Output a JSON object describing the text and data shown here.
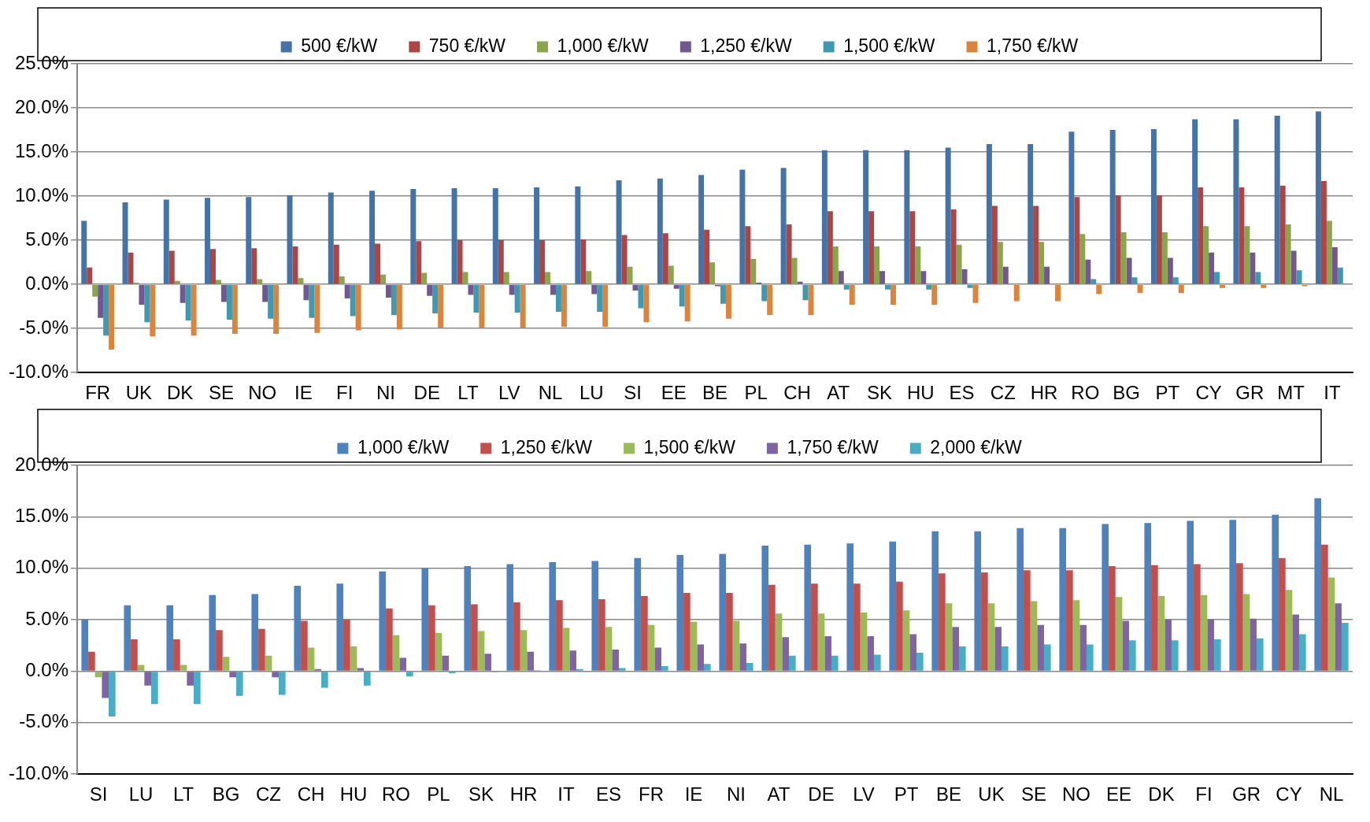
{
  "chart_data": [
    {
      "type": "bar",
      "categories": [
        "FR",
        "UK",
        "DK",
        "SE",
        "NO",
        "IE",
        "FI",
        "NI",
        "DE",
        "LT",
        "LV",
        "NL",
        "LU",
        "SI",
        "EE",
        "BE",
        "PL",
        "CH",
        "AT",
        "SK",
        "HU",
        "ES",
        "CZ",
        "HR",
        "RO",
        "BG",
        "PT",
        "CY",
        "GR",
        "MT",
        "IT"
      ],
      "series": [
        {
          "name": "500 €/kW",
          "color": "#4572a7",
          "values": [
            7.2,
            9.3,
            9.6,
            9.8,
            9.9,
            10.1,
            10.4,
            10.6,
            10.8,
            10.9,
            10.9,
            11.0,
            11.1,
            11.8,
            12.0,
            12.4,
            13.0,
            13.2,
            15.2,
            15.2,
            15.2,
            15.5,
            15.9,
            15.9,
            17.3,
            17.5,
            17.6,
            18.7,
            18.7,
            19.1,
            19.6
          ]
        },
        {
          "name": "750 €/kW",
          "color": "#aa4643",
          "values": [
            1.9,
            3.6,
            3.8,
            4.0,
            4.1,
            4.3,
            4.5,
            4.6,
            4.9,
            5.0,
            5.0,
            5.0,
            5.1,
            5.6,
            5.8,
            6.2,
            6.6,
            6.8,
            8.3,
            8.3,
            8.3,
            8.5,
            8.9,
            8.9,
            9.9,
            10.1,
            10.1,
            11.0,
            11.0,
            11.2,
            11.7
          ]
        },
        {
          "name": "1,000 €/kW",
          "color": "#89a54e",
          "values": [
            -1.4,
            0.2,
            0.4,
            0.5,
            0.6,
            0.7,
            0.9,
            1.1,
            1.3,
            1.4,
            1.4,
            1.4,
            1.5,
            2.0,
            2.1,
            2.5,
            2.9,
            3.0,
            4.3,
            4.3,
            4.3,
            4.5,
            4.8,
            4.8,
            5.7,
            5.9,
            5.9,
            6.6,
            6.6,
            6.8,
            7.2
          ]
        },
        {
          "name": "1,250 €/kW",
          "color": "#71588f",
          "values": [
            -3.8,
            -2.3,
            -2.1,
            -2.0,
            -2.0,
            -1.8,
            -1.6,
            -1.5,
            -1.3,
            -1.2,
            -1.2,
            -1.2,
            -1.1,
            -0.7,
            -0.5,
            -0.2,
            0.2,
            0.3,
            1.5,
            1.5,
            1.5,
            1.7,
            2.0,
            2.0,
            2.8,
            3.0,
            3.0,
            3.6,
            3.6,
            3.8,
            4.2
          ]
        },
        {
          "name": "1,500 €/kW",
          "color": "#4198af",
          "values": [
            -5.8,
            -4.3,
            -4.1,
            -4.0,
            -3.9,
            -3.8,
            -3.6,
            -3.5,
            -3.3,
            -3.2,
            -3.2,
            -3.1,
            -3.1,
            -2.7,
            -2.5,
            -2.2,
            -1.9,
            -1.8,
            -0.6,
            -0.6,
            -0.6,
            -0.4,
            null,
            null,
            0.6,
            0.8,
            0.8,
            1.4,
            1.4,
            1.6,
            1.9
          ]
        },
        {
          "name": "1,750 €/kW",
          "color": "#db843d",
          "values": [
            -7.4,
            -5.9,
            -5.8,
            -5.6,
            -5.6,
            -5.5,
            -5.2,
            -5.1,
            -4.9,
            -4.9,
            -4.9,
            -4.8,
            -4.8,
            -4.3,
            -4.2,
            -3.9,
            -3.5,
            -3.5,
            -2.3,
            -2.3,
            -2.3,
            -2.1,
            -1.9,
            -1.9,
            -1.1,
            -1.0,
            -1.0,
            -0.4,
            -0.4,
            -0.2,
            null
          ]
        }
      ],
      "ylim": [
        -10,
        25
      ],
      "yticks": [
        {
          "value": -10,
          "label": "-10.0%"
        },
        {
          "value": -5,
          "label": "-5.0%"
        },
        {
          "value": 0,
          "label": "0.0%"
        },
        {
          "value": 5,
          "label": "5.0%"
        },
        {
          "value": 10,
          "label": "10.0%"
        },
        {
          "value": 15,
          "label": "15.0%"
        },
        {
          "value": 20,
          "label": "20.0%"
        },
        {
          "value": 25,
          "label": "25.0%"
        }
      ],
      "grid": "y",
      "legend": "top"
    },
    {
      "type": "bar",
      "categories": [
        "SI",
        "LU",
        "LT",
        "BG",
        "CZ",
        "CH",
        "HU",
        "RO",
        "PL",
        "SK",
        "HR",
        "IT",
        "ES",
        "FR",
        "IE",
        "NI",
        "AT",
        "DE",
        "LV",
        "PT",
        "BE",
        "UK",
        "SE",
        "NO",
        "EE",
        "DK",
        "FI",
        "GR",
        "CY",
        "NL"
      ],
      "series": [
        {
          "name": "1,000 €/kW",
          "color": "#4f81bd",
          "values": [
            5.0,
            6.4,
            6.4,
            7.4,
            7.5,
            8.3,
            8.5,
            9.7,
            10.0,
            10.2,
            10.4,
            10.6,
            10.7,
            11.0,
            11.3,
            11.4,
            12.2,
            12.3,
            12.4,
            12.6,
            13.6,
            13.6,
            13.9,
            13.9,
            14.3,
            14.4,
            14.6,
            14.7,
            15.2,
            16.8
          ]
        },
        {
          "name": "1,250 €/kW",
          "color": "#c0504d",
          "values": [
            1.9,
            3.1,
            3.1,
            4.0,
            4.1,
            4.9,
            5.0,
            6.1,
            6.4,
            6.5,
            6.7,
            6.9,
            7.0,
            7.3,
            7.6,
            7.6,
            8.4,
            8.5,
            8.5,
            8.7,
            9.5,
            9.6,
            9.8,
            9.8,
            10.2,
            10.3,
            10.4,
            10.5,
            11.0,
            12.3
          ]
        },
        {
          "name": "1,500 €/kW",
          "color": "#9bbb59",
          "values": [
            -0.6,
            0.6,
            0.6,
            1.4,
            1.5,
            2.3,
            2.4,
            3.5,
            3.7,
            3.9,
            4.0,
            4.2,
            4.3,
            4.5,
            4.8,
            4.9,
            5.6,
            5.6,
            5.7,
            5.9,
            6.6,
            6.6,
            6.8,
            6.9,
            7.2,
            7.3,
            7.4,
            7.5,
            7.9,
            9.1
          ]
        },
        {
          "name": "1,750 €/kW",
          "color": "#8064a2",
          "values": [
            -2.6,
            -1.4,
            -1.4,
            -0.6,
            -0.6,
            0.2,
            0.3,
            1.3,
            1.5,
            1.7,
            1.9,
            2.0,
            2.1,
            2.3,
            2.6,
            2.7,
            3.3,
            3.4,
            3.4,
            3.6,
            4.3,
            4.3,
            4.5,
            4.5,
            4.9,
            5.0,
            5.0,
            5.1,
            5.5,
            6.6
          ]
        },
        {
          "name": "2,000 €/kW",
          "color": "#4bacc6",
          "values": [
            -4.4,
            -3.2,
            -3.2,
            -2.4,
            -2.3,
            -1.6,
            -1.4,
            -0.5,
            -0.2,
            -0.1,
            0.1,
            0.2,
            0.3,
            0.5,
            0.7,
            0.8,
            1.5,
            1.5,
            1.6,
            1.8,
            2.4,
            2.4,
            2.6,
            2.6,
            3.0,
            3.0,
            3.1,
            3.2,
            3.6,
            4.7
          ]
        }
      ],
      "ylim": [
        -10,
        20
      ],
      "yticks": [
        {
          "value": -10,
          "label": "-10.0%"
        },
        {
          "value": -5,
          "label": "-5.0%"
        },
        {
          "value": 0,
          "label": "0.0%"
        },
        {
          "value": 5,
          "label": "5.0%"
        },
        {
          "value": 10,
          "label": "10.0%"
        },
        {
          "value": 15,
          "label": "15.0%"
        },
        {
          "value": 20,
          "label": "20.0%"
        }
      ],
      "grid": "y",
      "legend": "top"
    }
  ]
}
